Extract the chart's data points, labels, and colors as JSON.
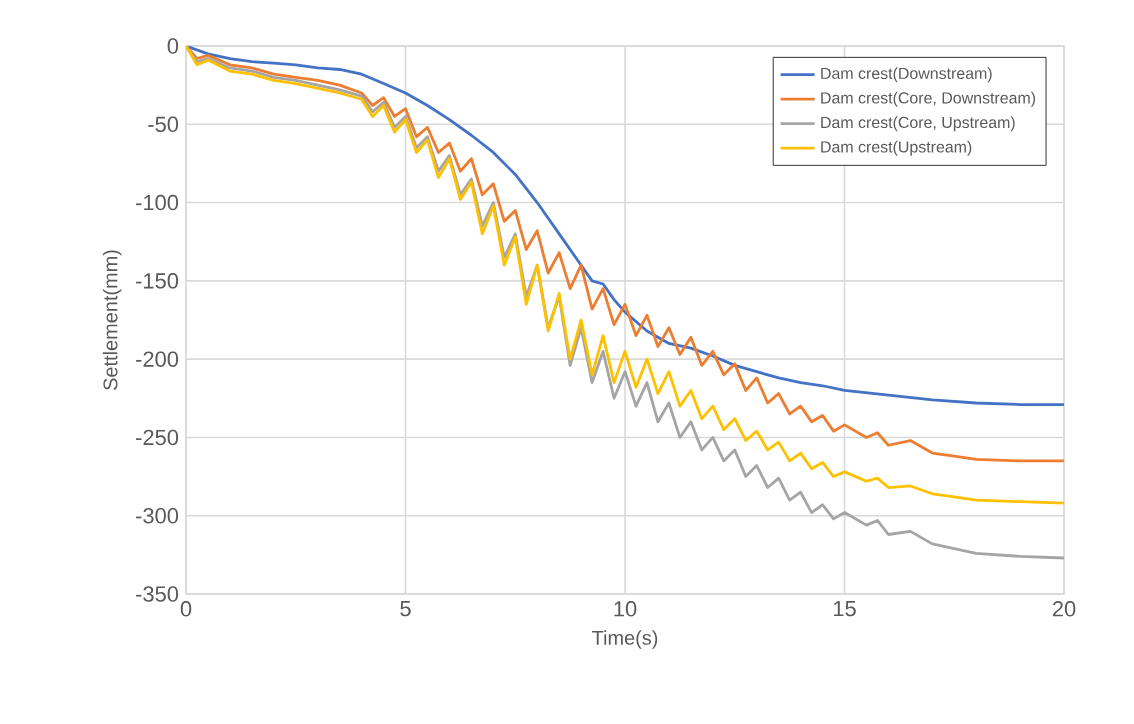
{
  "chart_data": {
    "type": "line",
    "xlabel": "Time(s)",
    "ylabel": "Settlement(mm)",
    "xlim": [
      0,
      20
    ],
    "ylim": [
      -350,
      0
    ],
    "xticks": [
      0,
      5,
      10,
      15,
      20
    ],
    "yticks": [
      -350,
      -300,
      -250,
      -200,
      -150,
      -100,
      -50,
      0
    ],
    "grid": true,
    "legend": "top right",
    "marker": "none",
    "line_style": "solid",
    "series": [
      {
        "name": "Dam crest(Downstream)",
        "color": "#4472c4",
        "x": [
          0,
          0.5,
          1,
          1.5,
          2,
          2.5,
          3,
          3.5,
          4,
          4.5,
          5,
          5.5,
          6,
          6.5,
          7,
          7.5,
          8,
          8.5,
          9,
          9.25,
          9.5,
          9.75,
          10,
          10.5,
          11,
          11.5,
          12,
          12.5,
          13,
          13.5,
          14,
          14.5,
          15,
          16,
          17,
          18,
          19,
          20
        ],
        "values": [
          0,
          -5,
          -8,
          -10,
          -11,
          -12,
          -14,
          -15,
          -18,
          -24,
          -30,
          -38,
          -47,
          -57,
          -68,
          -82,
          -100,
          -120,
          -140,
          -150,
          -152,
          -162,
          -170,
          -182,
          -190,
          -193,
          -198,
          -204,
          -208,
          -212,
          -215,
          -217,
          -220,
          -223,
          -226,
          -228,
          -229,
          -229
        ]
      },
      {
        "name": "Dam crest(Core, Downstream)",
        "color": "#ed7d31",
        "x": [
          0,
          0.25,
          0.5,
          1,
          1.5,
          2,
          2.5,
          3,
          3.5,
          4,
          4.25,
          4.5,
          4.75,
          5,
          5.25,
          5.5,
          5.75,
          6,
          6.25,
          6.5,
          6.75,
          7,
          7.25,
          7.5,
          7.75,
          8,
          8.25,
          8.5,
          8.75,
          9,
          9.25,
          9.5,
          9.75,
          10,
          10.25,
          10.5,
          10.75,
          11,
          11.25,
          11.5,
          11.75,
          12,
          12.25,
          12.5,
          12.75,
          13,
          13.25,
          13.5,
          13.75,
          14,
          14.25,
          14.5,
          14.75,
          15,
          15.5,
          15.75,
          16,
          16.5,
          17,
          17.5,
          18,
          19,
          20
        ],
        "values": [
          0,
          -8,
          -6,
          -12,
          -14,
          -18,
          -20,
          -22,
          -25,
          -30,
          -38,
          -33,
          -45,
          -40,
          -58,
          -52,
          -68,
          -62,
          -80,
          -72,
          -95,
          -88,
          -112,
          -105,
          -130,
          -118,
          -145,
          -132,
          -155,
          -140,
          -168,
          -155,
          -178,
          -165,
          -185,
          -172,
          -192,
          -180,
          -197,
          -186,
          -204,
          -195,
          -210,
          -203,
          -220,
          -212,
          -228,
          -222,
          -235,
          -230,
          -240,
          -236,
          -246,
          -242,
          -250,
          -247,
          -255,
          -252,
          -260,
          -262,
          -264,
          -265,
          -265
        ]
      },
      {
        "name": "Dam crest(Core, Upstream)",
        "color": "#a5a5a5",
        "x": [
          0,
          0.25,
          0.5,
          1,
          1.5,
          2,
          2.5,
          3,
          3.5,
          4,
          4.25,
          4.5,
          4.75,
          5,
          5.25,
          5.5,
          5.75,
          6,
          6.25,
          6.5,
          6.75,
          7,
          7.25,
          7.5,
          7.75,
          8,
          8.25,
          8.5,
          8.75,
          9,
          9.25,
          9.5,
          9.75,
          10,
          10.25,
          10.5,
          10.75,
          11,
          11.25,
          11.5,
          11.75,
          12,
          12.25,
          12.5,
          12.75,
          13,
          13.25,
          13.5,
          13.75,
          14,
          14.25,
          14.5,
          14.75,
          15,
          15.5,
          15.75,
          16,
          16.5,
          17,
          17.5,
          18,
          19,
          20
        ],
        "values": [
          0,
          -10,
          -8,
          -14,
          -16,
          -20,
          -22,
          -25,
          -28,
          -32,
          -42,
          -36,
          -52,
          -45,
          -65,
          -58,
          -80,
          -70,
          -95,
          -85,
          -115,
          -100,
          -135,
          -120,
          -160,
          -140,
          -180,
          -160,
          -204,
          -180,
          -215,
          -195,
          -225,
          -208,
          -230,
          -215,
          -240,
          -228,
          -250,
          -240,
          -258,
          -250,
          -265,
          -258,
          -275,
          -268,
          -282,
          -276,
          -290,
          -285,
          -298,
          -293,
          -302,
          -298,
          -306,
          -303,
          -312,
          -310,
          -318,
          -321,
          -324,
          -326,
          -327
        ]
      },
      {
        "name": "Dam crest(Upstream)",
        "color": "#ffc000",
        "x": [
          0,
          0.25,
          0.5,
          1,
          1.5,
          2,
          2.5,
          3,
          3.5,
          4,
          4.25,
          4.5,
          4.75,
          5,
          5.25,
          5.5,
          5.75,
          6,
          6.25,
          6.5,
          6.75,
          7,
          7.25,
          7.5,
          7.75,
          8,
          8.25,
          8.5,
          8.75,
          9,
          9.25,
          9.5,
          9.75,
          10,
          10.25,
          10.5,
          10.75,
          11,
          11.25,
          11.5,
          11.75,
          12,
          12.25,
          12.5,
          12.75,
          13,
          13.25,
          13.5,
          13.75,
          14,
          14.25,
          14.5,
          14.75,
          15,
          15.5,
          15.75,
          16,
          16.5,
          17,
          17.5,
          18,
          19,
          20
        ],
        "values": [
          0,
          -12,
          -9,
          -16,
          -18,
          -22,
          -24,
          -27,
          -30,
          -34,
          -45,
          -38,
          -55,
          -47,
          -68,
          -60,
          -84,
          -72,
          -98,
          -87,
          -120,
          -102,
          -140,
          -122,
          -165,
          -140,
          -182,
          -158,
          -200,
          -175,
          -210,
          -185,
          -215,
          -195,
          -218,
          -200,
          -222,
          -208,
          -230,
          -220,
          -238,
          -230,
          -245,
          -238,
          -252,
          -246,
          -258,
          -253,
          -265,
          -260,
          -270,
          -266,
          -275,
          -272,
          -278,
          -276,
          -282,
          -281,
          -286,
          -288,
          -290,
          -291,
          -292
        ]
      }
    ]
  }
}
